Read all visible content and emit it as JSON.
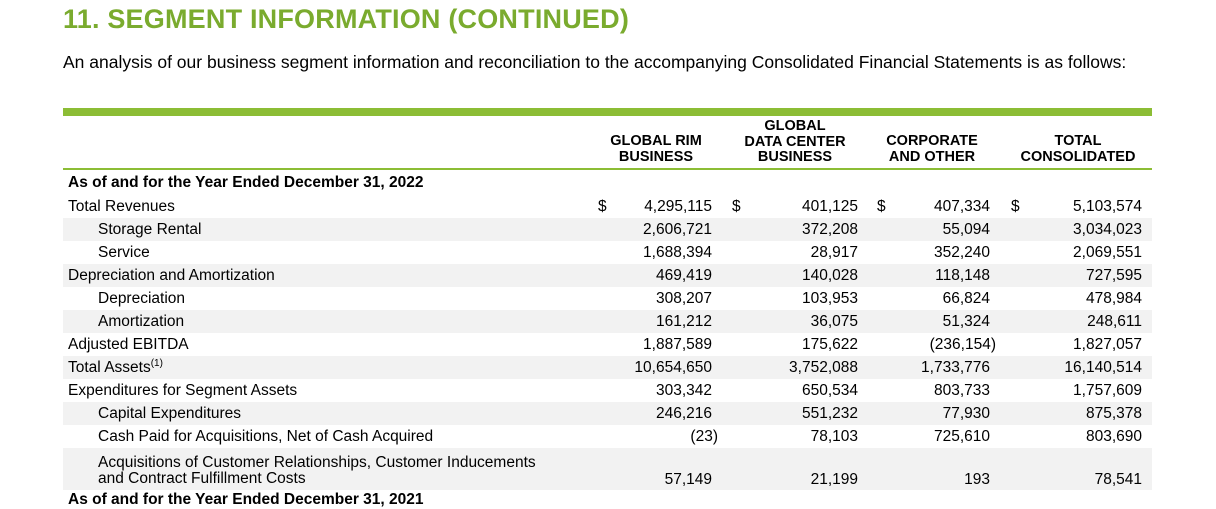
{
  "title": "11. SEGMENT INFORMATION (CONTINUED)",
  "intro": "An analysis of our business segment information and reconciliation to the accompanying Consolidated Financial Statements is as follows:",
  "columns": [
    {
      "line1": "GLOBAL RIM",
      "line2": "BUSINESS"
    },
    {
      "line0": "GLOBAL",
      "line1": "DATA CENTER",
      "line2": "BUSINESS"
    },
    {
      "line1": "CORPORATE",
      "line2": "AND OTHER"
    },
    {
      "line1": "TOTAL",
      "line2": "CONSOLIDATED"
    }
  ],
  "currency_symbol": "$",
  "section_heading": "As of and for the Year Ended December 31, 2022",
  "rows": [
    {
      "label": "Total Revenues",
      "values": [
        "4,295,115",
        "401,125",
        "407,334",
        "5,103,574"
      ]
    },
    {
      "label": "Storage Rental",
      "values": [
        "2,606,721",
        "372,208",
        "55,094",
        "3,034,023"
      ]
    },
    {
      "label": "Service",
      "values": [
        "1,688,394",
        "28,917",
        "352,240",
        "2,069,551"
      ]
    },
    {
      "label": "Depreciation and Amortization",
      "values": [
        "469,419",
        "140,028",
        "118,148",
        "727,595"
      ]
    },
    {
      "label": "Depreciation",
      "values": [
        "308,207",
        "103,953",
        "66,824",
        "478,984"
      ]
    },
    {
      "label": "Amortization",
      "values": [
        "161,212",
        "36,075",
        "51,324",
        "248,611"
      ]
    },
    {
      "label": "Adjusted EBITDA",
      "values": [
        "1,887,589",
        "175,622",
        "(236,154)",
        "1,827,057"
      ]
    },
    {
      "label": "Total Assets",
      "footnote": "(1)",
      "values": [
        "10,654,650",
        "3,752,088",
        "1,733,776",
        "16,140,514"
      ]
    },
    {
      "label": "Expenditures for Segment Assets",
      "values": [
        "303,342",
        "650,534",
        "803,733",
        "1,757,609"
      ]
    },
    {
      "label": "Capital Expenditures",
      "values": [
        "246,216",
        "551,232",
        "77,930",
        "875,378"
      ]
    },
    {
      "label": "Cash Paid for Acquisitions, Net of Cash Acquired",
      "values": [
        "(23)",
        "78,103",
        "725,610",
        "803,690"
      ]
    },
    {
      "label_line1": "Acquisitions of Customer Relationships, Customer Inducements",
      "label_line2": "and Contract Fulfillment Costs",
      "values": [
        "57,149",
        "21,199",
        "193",
        "78,541"
      ]
    }
  ],
  "next_section_heading": "As of and for the Year Ended December 31, 2021"
}
